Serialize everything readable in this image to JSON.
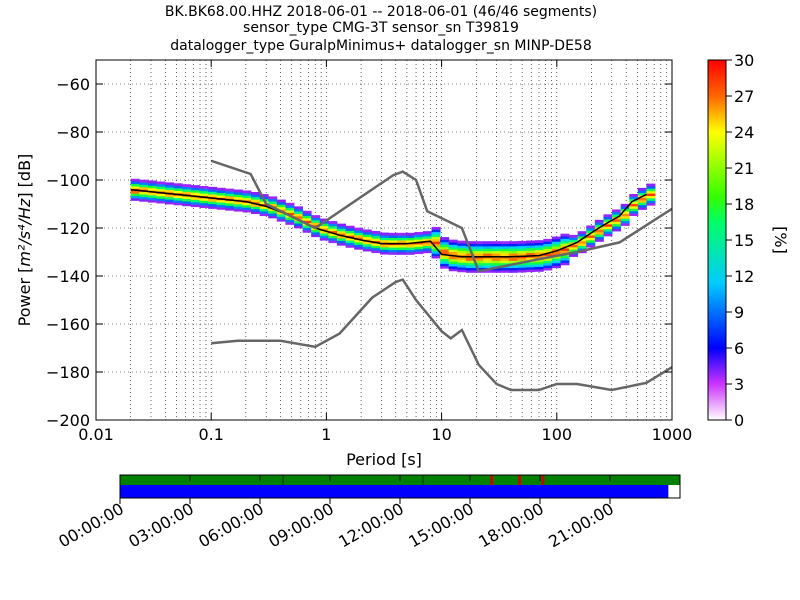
{
  "chart_data": [
    {
      "type": "heatmap",
      "title_lines": [
        "BK.BK68.00.HHZ   2018-06-01 -- 2018-06-01  (46/46 segments)",
        "sensor_type CMG-3T sensor_sn T39819",
        "datalogger_type GuralpMinimus+ datalogger_sn MINP-DE58"
      ],
      "xlabel": "Period [s]",
      "ylabel_prefix": "Power [",
      "ylabel_math": "m²/s⁴/Hz",
      "ylabel_suffix": "] [dB]",
      "xscale": "log",
      "xlim": [
        0.01,
        1000
      ],
      "ylim": [
        -200,
        -50
      ],
      "x_ticks": [
        0.01,
        0.1,
        1,
        10,
        100,
        1000
      ],
      "x_tick_labels": [
        "0.01",
        "0.1",
        "1",
        "10",
        "100",
        "1000"
      ],
      "y_ticks": [
        -200,
        -180,
        -160,
        -140,
        -120,
        -100,
        -80,
        -60
      ],
      "y_tick_labels": [
        "−200",
        "−180",
        "−160",
        "−140",
        "−120",
        "−100",
        "−80",
        "−60"
      ],
      "grid": "dotted",
      "noise_models": [
        {
          "points": [
            [
              0.1,
              -92
            ],
            [
              0.22,
              -97.5
            ],
            [
              0.3,
              -110
            ],
            [
              0.8,
              -120
            ],
            [
              3.8,
              -98
            ],
            [
              4.6,
              -96.5
            ],
            [
              6.0,
              -100
            ],
            [
              7.5,
              -113
            ],
            [
              15,
              -120
            ],
            [
              21,
              -138
            ],
            [
              70,
              -133
            ],
            [
              150,
              -130
            ],
            [
              350,
              -126
            ],
            [
              1000,
              -112
            ]
          ]
        },
        {
          "points": [
            [
              0.1,
              -168
            ],
            [
              0.17,
              -167
            ],
            [
              0.4,
              -167
            ],
            [
              0.8,
              -169.5
            ],
            [
              1.3,
              -164
            ],
            [
              2.5,
              -149
            ],
            [
              4.0,
              -142.5
            ],
            [
              4.6,
              -141.5
            ],
            [
              6.0,
              -150
            ],
            [
              10,
              -163
            ],
            [
              12,
              -166
            ],
            [
              15,
              -162.5
            ],
            [
              21,
              -177
            ],
            [
              30,
              -185
            ],
            [
              40,
              -187.5
            ],
            [
              70,
              -187.5
            ],
            [
              100,
              -185
            ],
            [
              150,
              -185
            ],
            [
              300,
              -187.5
            ],
            [
              600,
              -184.5
            ],
            [
              1000,
              -178
            ]
          ]
        }
      ],
      "psd_curve": [
        [
          0.02,
          -104
        ],
        [
          0.05,
          -106
        ],
        [
          0.1,
          -107.5
        ],
        [
          0.2,
          -109
        ],
        [
          0.3,
          -111
        ],
        [
          0.5,
          -115
        ],
        [
          0.8,
          -120
        ],
        [
          1.3,
          -123
        ],
        [
          2,
          -125
        ],
        [
          3,
          -126.5
        ],
        [
          5,
          -126.5
        ],
        [
          8,
          -125.5
        ],
        [
          10,
          -131
        ],
        [
          15,
          -132
        ],
        [
          25,
          -132
        ],
        [
          40,
          -132
        ],
        [
          70,
          -131.5
        ],
        [
          100,
          -129.5
        ],
        [
          150,
          -126
        ],
        [
          200,
          -122
        ],
        [
          250,
          -119
        ],
        [
          350,
          -115
        ],
        [
          450,
          -109
        ],
        [
          600,
          -106
        ]
      ],
      "colorbar": {
        "label": "[%]",
        "range": [
          0,
          30
        ],
        "ticks": [
          0,
          3,
          6,
          9,
          12,
          15,
          18,
          21,
          24,
          27,
          30
        ]
      }
    },
    {
      "type": "timeline",
      "tick_labels": [
        "00:00:00",
        "03:00:00",
        "06:00:00",
        "09:00:00",
        "12:00:00",
        "15:00:00",
        "18:00:00",
        "21:00:00"
      ],
      "tick_hours": [
        0,
        3,
        6,
        9,
        12,
        15,
        18,
        21
      ],
      "range_hours": [
        0,
        24
      ],
      "segments_row": {
        "color": "#008000",
        "marks_hours": [
          7,
          13,
          15.9,
          17.1,
          18.1
        ],
        "mark_color": "#cc0000"
      },
      "coverage_row": {
        "color": "#0000ff",
        "end_hours": 23.5
      }
    }
  ]
}
